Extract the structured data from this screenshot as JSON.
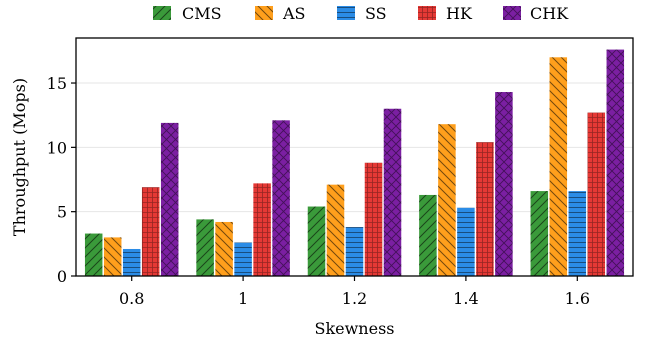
{
  "chart_data": {
    "type": "bar",
    "categories": [
      "0.8",
      "1",
      "1.2",
      "1.4",
      "1.6"
    ],
    "series": [
      {
        "name": "CMS",
        "values": [
          3.3,
          4.4,
          5.4,
          6.3,
          6.6
        ],
        "color": "#3a9a3a",
        "pattern": "diagonal-left"
      },
      {
        "name": "AS",
        "values": [
          3.0,
          4.2,
          7.1,
          11.8,
          17.0
        ],
        "color": "#ff9f1c",
        "pattern": "diagonal-right"
      },
      {
        "name": "SS",
        "values": [
          2.1,
          2.6,
          3.8,
          5.3,
          6.6
        ],
        "color": "#2b8ce6",
        "pattern": "horizontal"
      },
      {
        "name": "HK",
        "values": [
          6.9,
          7.2,
          8.8,
          10.4,
          12.7
        ],
        "color": "#e53935",
        "pattern": "grid"
      },
      {
        "name": "CHK",
        "values": [
          11.9,
          12.1,
          13.0,
          14.3,
          17.6
        ],
        "color": "#7b1fa2",
        "pattern": "crosshatch"
      }
    ],
    "xlabel": "Skewness",
    "ylabel": "Throughput (Mops)",
    "ylim": [
      0,
      18.5
    ],
    "yticks": [
      "0",
      "5",
      "10",
      "15"
    ],
    "grid": true,
    "legend_position": "top"
  }
}
